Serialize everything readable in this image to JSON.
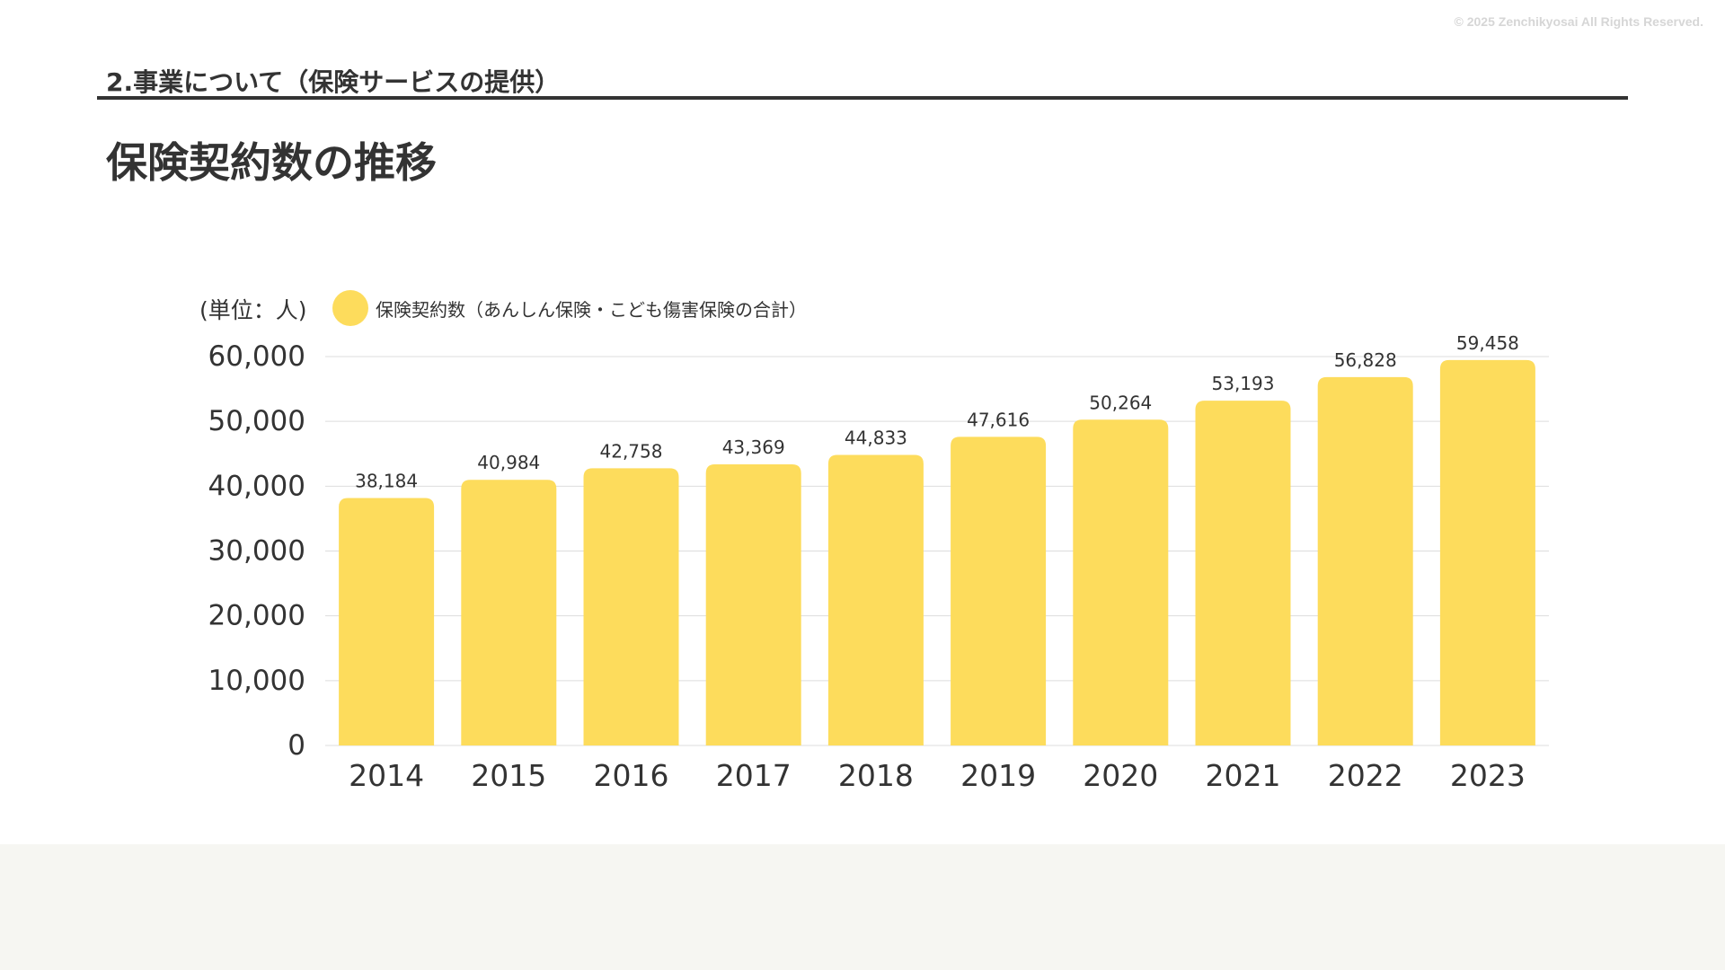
{
  "header": {
    "copyright": "© 2025 Zenchikyosai All Rights Reserved.",
    "section_title": "2.事業について（保険サービスの提供）",
    "page_title": "保険契約数の推移"
  },
  "colors": {
    "bar": "#fddc5c",
    "grid": "#dddddd",
    "text": "#333333",
    "footer": "#f6f6f2"
  },
  "chart_data": {
    "type": "bar",
    "unit_label": "(単位：人)",
    "categories": [
      "2014",
      "2015",
      "2016",
      "2017",
      "2018",
      "2019",
      "2020",
      "2021",
      "2022",
      "2023"
    ],
    "series": [
      {
        "name": "保険契約数（あんしん保険・こども傷害保険の合計）",
        "values": [
          38184,
          40984,
          42758,
          43369,
          44833,
          47616,
          50264,
          53193,
          56828,
          59458
        ],
        "labels": [
          "38,184",
          "40,984",
          "42,758",
          "43,369",
          "44,833",
          "47,616",
          "50,264",
          "53,193",
          "56,828",
          "59,458"
        ]
      }
    ],
    "ylim": [
      0,
      60000
    ],
    "yticks": [
      0,
      10000,
      20000,
      30000,
      40000,
      50000,
      60000
    ],
    "ytick_labels": [
      "0",
      "10,000",
      "20,000",
      "30,000",
      "40,000",
      "50,000",
      "60,000"
    ],
    "grid": true,
    "legend_position": "top-left"
  }
}
